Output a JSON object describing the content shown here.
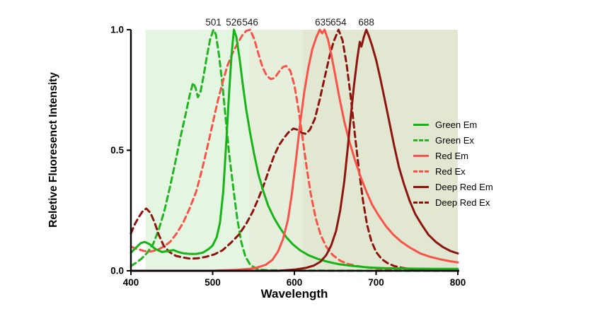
{
  "figure": {
    "xlabel": "Wavelength",
    "ylabel": "Reletive Fluoresenct Intensity"
  },
  "chart_data": {
    "type": "line",
    "title": "",
    "xlabel": "Wavelength",
    "ylabel": "Reletive Fluoresenct Intensity",
    "xlim": [
      400,
      800
    ],
    "ylim": [
      0,
      1.0
    ],
    "x_ticks": [
      400,
      500,
      600,
      700,
      800
    ],
    "y_ticks": [
      0.0,
      0.5,
      1.0
    ],
    "y_tick_labels": [
      "0.0",
      "0.5",
      "1.0"
    ],
    "grid": false,
    "legend_position": "right-outside",
    "background_bands": [
      {
        "x_start": 418,
        "x_end": 545,
        "color": "#e4f6e1"
      },
      {
        "x_start": 545,
        "x_end": 610,
        "color": "#e6efdb"
      },
      {
        "x_start": 610,
        "x_end": 800,
        "color": "#e1e7d0"
      }
    ],
    "peak_annotations": [
      {
        "label": "501",
        "x": 501
      },
      {
        "label": "526",
        "x": 526
      },
      {
        "label": "546",
        "x": 546
      },
      {
        "label": "635",
        "x": 635
      },
      {
        "label": "654",
        "x": 654
      },
      {
        "label": "688",
        "x": 688
      }
    ],
    "series": [
      {
        "name": "Green Em",
        "color": "#17b417",
        "dash": "solid",
        "points": [
          [
            400,
            0.075
          ],
          [
            406,
            0.095
          ],
          [
            412,
            0.115
          ],
          [
            417,
            0.12
          ],
          [
            423,
            0.11
          ],
          [
            430,
            0.09
          ],
          [
            438,
            0.078
          ],
          [
            446,
            0.082
          ],
          [
            452,
            0.086
          ],
          [
            458,
            0.078
          ],
          [
            465,
            0.072
          ],
          [
            472,
            0.07
          ],
          [
            480,
            0.07
          ],
          [
            488,
            0.075
          ],
          [
            495,
            0.09
          ],
          [
            500,
            0.105
          ],
          [
            505,
            0.14
          ],
          [
            509,
            0.2
          ],
          [
            513,
            0.33
          ],
          [
            517,
            0.55
          ],
          [
            520,
            0.73
          ],
          [
            523,
            0.89
          ],
          [
            526,
            1.0
          ],
          [
            529,
            0.97
          ],
          [
            533,
            0.88
          ],
          [
            537,
            0.77
          ],
          [
            541,
            0.67
          ],
          [
            546,
            0.57
          ],
          [
            551,
            0.48
          ],
          [
            556,
            0.4
          ],
          [
            562,
            0.33
          ],
          [
            568,
            0.27
          ],
          [
            575,
            0.22
          ],
          [
            582,
            0.18
          ],
          [
            590,
            0.14
          ],
          [
            598,
            0.11
          ],
          [
            607,
            0.085
          ],
          [
            617,
            0.065
          ],
          [
            628,
            0.05
          ],
          [
            640,
            0.038
          ],
          [
            655,
            0.027
          ],
          [
            672,
            0.02
          ],
          [
            690,
            0.014
          ],
          [
            710,
            0.011
          ],
          [
            740,
            0.009
          ],
          [
            770,
            0.008
          ],
          [
            800,
            0.008
          ]
        ]
      },
      {
        "name": "Green Ex",
        "color": "#22b422",
        "dash": "dashed",
        "points": [
          [
            400,
            0.02
          ],
          [
            407,
            0.035
          ],
          [
            413,
            0.05
          ],
          [
            420,
            0.075
          ],
          [
            427,
            0.11
          ],
          [
            434,
            0.17
          ],
          [
            441,
            0.25
          ],
          [
            448,
            0.35
          ],
          [
            455,
            0.46
          ],
          [
            461,
            0.56
          ],
          [
            467,
            0.65
          ],
          [
            472,
            0.73
          ],
          [
            476,
            0.78
          ],
          [
            479,
            0.76
          ],
          [
            482,
            0.72
          ],
          [
            485,
            0.74
          ],
          [
            489,
            0.81
          ],
          [
            493,
            0.89
          ],
          [
            497,
            0.96
          ],
          [
            501,
            1.0
          ],
          [
            504,
            0.98
          ],
          [
            508,
            0.89
          ],
          [
            512,
            0.77
          ],
          [
            516,
            0.63
          ],
          [
            520,
            0.49
          ],
          [
            525,
            0.35
          ],
          [
            530,
            0.22
          ],
          [
            535,
            0.12
          ],
          [
            540,
            0.06
          ],
          [
            546,
            0.025
          ],
          [
            553,
            0.01
          ],
          [
            560,
            0.004
          ],
          [
            570,
            0.002
          ],
          [
            600,
            0.001
          ],
          [
            700,
            0.0
          ],
          [
            800,
            0.0
          ]
        ]
      },
      {
        "name": "Red Em",
        "color": "#f8534b",
        "dash": "solid",
        "points": [
          [
            400,
            0.0
          ],
          [
            500,
            0.0
          ],
          [
            530,
            0.004
          ],
          [
            545,
            0.008
          ],
          [
            555,
            0.014
          ],
          [
            565,
            0.025
          ],
          [
            573,
            0.045
          ],
          [
            580,
            0.08
          ],
          [
            586,
            0.13
          ],
          [
            592,
            0.21
          ],
          [
            597,
            0.32
          ],
          [
            602,
            0.46
          ],
          [
            607,
            0.61
          ],
          [
            612,
            0.74
          ],
          [
            617,
            0.84
          ],
          [
            622,
            0.92
          ],
          [
            627,
            0.97
          ],
          [
            631,
            1.0
          ],
          [
            634,
            0.985
          ],
          [
            637,
            1.0
          ],
          [
            641,
            0.96
          ],
          [
            645,
            0.9
          ],
          [
            650,
            0.81
          ],
          [
            655,
            0.72
          ],
          [
            661,
            0.62
          ],
          [
            667,
            0.54
          ],
          [
            674,
            0.46
          ],
          [
            681,
            0.39
          ],
          [
            688,
            0.33
          ],
          [
            695,
            0.275
          ],
          [
            703,
            0.23
          ],
          [
            712,
            0.185
          ],
          [
            721,
            0.15
          ],
          [
            731,
            0.12
          ],
          [
            742,
            0.095
          ],
          [
            754,
            0.072
          ],
          [
            766,
            0.058
          ],
          [
            778,
            0.048
          ],
          [
            790,
            0.04
          ],
          [
            800,
            0.035
          ]
        ]
      },
      {
        "name": "Red Ex",
        "color": "#f8534b",
        "dash": "dashed",
        "points": [
          [
            400,
            0.1
          ],
          [
            408,
            0.09
          ],
          [
            416,
            0.082
          ],
          [
            424,
            0.08
          ],
          [
            432,
            0.086
          ],
          [
            440,
            0.1
          ],
          [
            448,
            0.12
          ],
          [
            456,
            0.155
          ],
          [
            464,
            0.2
          ],
          [
            472,
            0.26
          ],
          [
            480,
            0.33
          ],
          [
            487,
            0.42
          ],
          [
            494,
            0.52
          ],
          [
            500,
            0.61
          ],
          [
            506,
            0.7
          ],
          [
            512,
            0.78
          ],
          [
            518,
            0.85
          ],
          [
            524,
            0.9
          ],
          [
            530,
            0.94
          ],
          [
            536,
            0.975
          ],
          [
            541,
            0.995
          ],
          [
            546,
            1.0
          ],
          [
            551,
            0.96
          ],
          [
            556,
            0.9
          ],
          [
            561,
            0.845
          ],
          [
            566,
            0.81
          ],
          [
            571,
            0.795
          ],
          [
            576,
            0.8
          ],
          [
            581,
            0.825
          ],
          [
            586,
            0.845
          ],
          [
            590,
            0.85
          ],
          [
            595,
            0.83
          ],
          [
            600,
            0.77
          ],
          [
            605,
            0.67
          ],
          [
            610,
            0.55
          ],
          [
            615,
            0.43
          ],
          [
            620,
            0.32
          ],
          [
            626,
            0.22
          ],
          [
            632,
            0.15
          ],
          [
            639,
            0.1
          ],
          [
            647,
            0.065
          ],
          [
            656,
            0.042
          ],
          [
            666,
            0.028
          ],
          [
            680,
            0.018
          ],
          [
            700,
            0.01
          ],
          [
            730,
            0.005
          ],
          [
            770,
            0.002
          ],
          [
            800,
            0.0
          ]
        ]
      },
      {
        "name": "Deep Red Em",
        "color": "#8e1410",
        "dash": "solid",
        "points": [
          [
            400,
            0.0
          ],
          [
            580,
            0.0
          ],
          [
            600,
            0.005
          ],
          [
            614,
            0.012
          ],
          [
            624,
            0.022
          ],
          [
            632,
            0.038
          ],
          [
            639,
            0.065
          ],
          [
            645,
            0.105
          ],
          [
            651,
            0.165
          ],
          [
            656,
            0.25
          ],
          [
            661,
            0.37
          ],
          [
            665,
            0.5
          ],
          [
            669,
            0.64
          ],
          [
            673,
            0.77
          ],
          [
            677,
            0.88
          ],
          [
            680,
            0.95
          ],
          [
            682,
            0.93
          ],
          [
            685,
            0.97
          ],
          [
            688,
            1.0
          ],
          [
            691,
            0.975
          ],
          [
            695,
            0.935
          ],
          [
            700,
            0.875
          ],
          [
            705,
            0.8
          ],
          [
            710,
            0.72
          ],
          [
            716,
            0.62
          ],
          [
            722,
            0.52
          ],
          [
            728,
            0.43
          ],
          [
            734,
            0.36
          ],
          [
            741,
            0.29
          ],
          [
            748,
            0.235
          ],
          [
            756,
            0.19
          ],
          [
            764,
            0.15
          ],
          [
            773,
            0.12
          ],
          [
            782,
            0.098
          ],
          [
            791,
            0.082
          ],
          [
            800,
            0.072
          ]
        ]
      },
      {
        "name": "Deep Red Ex",
        "color": "#8e1410",
        "dash": "dashed",
        "points": [
          [
            400,
            0.155
          ],
          [
            405,
            0.195
          ],
          [
            410,
            0.225
          ],
          [
            415,
            0.25
          ],
          [
            419,
            0.258
          ],
          [
            424,
            0.24
          ],
          [
            429,
            0.2
          ],
          [
            434,
            0.15
          ],
          [
            440,
            0.105
          ],
          [
            447,
            0.078
          ],
          [
            455,
            0.062
          ],
          [
            464,
            0.055
          ],
          [
            473,
            0.05
          ],
          [
            482,
            0.052
          ],
          [
            492,
            0.058
          ],
          [
            502,
            0.068
          ],
          [
            512,
            0.085
          ],
          [
            522,
            0.115
          ],
          [
            532,
            0.15
          ],
          [
            541,
            0.195
          ],
          [
            549,
            0.245
          ],
          [
            556,
            0.3
          ],
          [
            563,
            0.36
          ],
          [
            569,
            0.42
          ],
          [
            575,
            0.475
          ],
          [
            581,
            0.52
          ],
          [
            587,
            0.55
          ],
          [
            593,
            0.575
          ],
          [
            599,
            0.59
          ],
          [
            604,
            0.585
          ],
          [
            609,
            0.572
          ],
          [
            614,
            0.568
          ],
          [
            619,
            0.585
          ],
          [
            625,
            0.63
          ],
          [
            631,
            0.71
          ],
          [
            637,
            0.8
          ],
          [
            643,
            0.89
          ],
          [
            648,
            0.95
          ],
          [
            654,
            1.0
          ],
          [
            659,
            0.955
          ],
          [
            664,
            0.855
          ],
          [
            669,
            0.72
          ],
          [
            674,
            0.565
          ],
          [
            679,
            0.42
          ],
          [
            684,
            0.29
          ],
          [
            689,
            0.19
          ],
          [
            694,
            0.125
          ],
          [
            700,
            0.078
          ],
          [
            707,
            0.048
          ],
          [
            714,
            0.032
          ],
          [
            722,
            0.02
          ],
          [
            732,
            0.012
          ],
          [
            745,
            0.006
          ],
          [
            760,
            0.003
          ],
          [
            800,
            0.0
          ]
        ]
      }
    ]
  }
}
